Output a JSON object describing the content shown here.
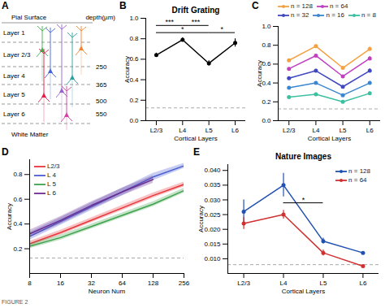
{
  "chart_data": [
    {
      "panel": "B",
      "type": "line",
      "title": "Drift Grating",
      "x_label": "Cortical Layers",
      "y_label": "Accuracy",
      "categories": [
        "L2/3",
        "L4",
        "L5",
        "L6"
      ],
      "values": [
        0.64,
        0.79,
        0.56,
        0.76
      ],
      "errors": [
        0.02,
        0.02,
        0.025,
        0.04
      ],
      "color": "#000000",
      "marker": "circle",
      "ylim": [
        0,
        1.0
      ],
      "yticks": [
        {
          "value": 0,
          "label": "0.0"
        },
        0.2,
        0.4,
        0.6,
        0.8,
        {
          "value": 1.0,
          "label": "1.0"
        }
      ],
      "chance_level": 0.125,
      "significance": [
        {
          "from": "L2/3",
          "to": "L4",
          "y": 0.93,
          "label": "***"
        },
        {
          "from": "L2/3",
          "to": "L5",
          "y": 0.86,
          "label": "*"
        },
        {
          "from": "L4",
          "to": "L5",
          "y": 0.93,
          "label": "***"
        },
        {
          "from": "L5",
          "to": "L6",
          "y": 0.86,
          "label": "*"
        }
      ]
    },
    {
      "panel": "C",
      "type": "line",
      "x_label": "Cortical Layers",
      "y_label": "Accuracy",
      "categories": [
        "L2/3",
        "L4",
        "L5",
        "L6"
      ],
      "marker": "circle",
      "series": [
        {
          "name": "n = 128",
          "color": "#f5a142",
          "values": [
            0.64,
            0.79,
            0.56,
            0.76
          ],
          "errors": [
            0.01,
            0.015,
            0.01,
            0.02
          ]
        },
        {
          "name": "n = 64",
          "color": "#c040c0",
          "values": [
            0.55,
            0.69,
            0.47,
            0.66
          ],
          "errors": [
            0.01,
            0.015,
            0.01,
            0.02
          ]
        },
        {
          "name": "n = 32",
          "color": "#4048c0",
          "values": [
            0.45,
            0.53,
            0.36,
            0.53
          ],
          "errors": [
            0.01,
            0.015,
            0.01,
            0.02
          ]
        },
        {
          "name": "n = 16",
          "color": "#3a86d0",
          "values": [
            0.35,
            0.4,
            0.27,
            0.4
          ],
          "errors": [
            0.01,
            0.01,
            0.01,
            0.015
          ]
        },
        {
          "name": "n = 8",
          "color": "#3cc0a0",
          "values": [
            0.25,
            0.28,
            0.2,
            0.29
          ],
          "errors": [
            0.01,
            0.01,
            0.01,
            0.01
          ]
        }
      ],
      "legend": "top",
      "ylim": [
        0,
        1.0
      ],
      "yticks": [
        {
          "value": 0,
          "label": "0.0"
        },
        0.2,
        0.4,
        0.6,
        0.8,
        {
          "value": 1.0,
          "label": "1.0"
        }
      ],
      "chance_level": 0.125
    },
    {
      "panel": "D",
      "type": "line",
      "x_label": "Neuron Num",
      "y_label": "Accuracy",
      "x": [
        8,
        16,
        32,
        64,
        128,
        256
      ],
      "log": "x",
      "xlim": [
        8,
        256
      ],
      "xticks": [
        8,
        16,
        32,
        64,
        128,
        256
      ],
      "ylim": [
        0,
        0.92
      ],
      "yticks": [
        0.2,
        0.4,
        0.6,
        0.8
      ],
      "series": [
        {
          "name": "L2/3",
          "color": "#e8363a",
          "values": [
            0.24,
            0.33,
            0.43,
            0.53,
            0.63,
            0.72
          ],
          "errors": [
            0.02,
            0.02,
            0.02,
            0.02,
            0.02,
            0.02
          ]
        },
        {
          "name": "L 4",
          "color": "#4a5ed0",
          "values": [
            0.3,
            0.42,
            0.54,
            0.66,
            0.78,
            0.87
          ],
          "errors": [
            0.03,
            0.03,
            0.03,
            0.03,
            0.03,
            0.02
          ]
        },
        {
          "name": "L 5",
          "color": "#3fa34d",
          "values": [
            0.22,
            0.29,
            0.38,
            0.47,
            0.56,
            0.67
          ],
          "errors": [
            0.02,
            0.02,
            0.02,
            0.02,
            0.02,
            0.02
          ]
        },
        {
          "name": "L 6",
          "color": "#6a2c91",
          "values": [
            0.32,
            0.43,
            0.55,
            0.66,
            0.76,
            null
          ],
          "errors": [
            0.03,
            0.03,
            0.03,
            0.03,
            0.03,
            null
          ]
        }
      ],
      "legend": "upper left",
      "chance_level": 0.125
    },
    {
      "panel": "E",
      "type": "line",
      "title": "Nature Images",
      "x_label": "Cortical Layers",
      "y_label": "Accuracy",
      "categories": [
        "L2/3",
        "L4",
        "L5",
        "L6"
      ],
      "marker": "circle",
      "series": [
        {
          "name": "n = 128",
          "color": "#2050b0",
          "values": [
            0.026,
            0.035,
            0.016,
            0.012
          ],
          "errors": [
            0.004,
            0.004,
            0.001,
            0.0003
          ]
        },
        {
          "name": "n = 64",
          "color": "#d03030",
          "values": [
            0.022,
            0.025,
            0.012,
            0.0075
          ],
          "errors": [
            0.002,
            0.0015,
            0.001,
            0.0003
          ]
        }
      ],
      "legend": "upper right",
      "ylim": [
        0.005,
        0.042
      ],
      "yticks": [
        {
          "value": 0.01,
          "label": "0.010"
        },
        {
          "value": 0.015,
          "label": "0.015"
        },
        {
          "value": 0.02,
          "label": "0.020"
        },
        {
          "value": 0.025,
          "label": "0.025"
        },
        {
          "value": 0.03,
          "label": "0.030"
        },
        {
          "value": 0.035,
          "label": "0.035"
        },
        {
          "value": 0.04,
          "label": "0.040"
        }
      ],
      "chance_level": 0.008,
      "significance": [
        {
          "from": "L4",
          "to": "L5",
          "y": 0.029,
          "label": "*"
        }
      ]
    }
  ],
  "diagram": {
    "panel": "A",
    "top_label": "Pial Surface",
    "depth_label": "depth(µm)",
    "layers": [
      "Layer 1",
      "Layer 2/3",
      "Layer 4",
      "Layer 5",
      "Layer 6"
    ],
    "bottom_label": "White Matter",
    "depths": [
      250,
      365,
      500,
      550
    ]
  },
  "caption": "FIGURE 2"
}
